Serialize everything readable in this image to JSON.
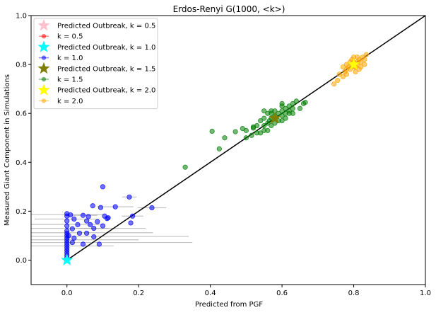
{
  "chart_data": {
    "type": "scatter",
    "title": "Erdos-Renyi G(1000, <k>)",
    "xlabel": "Predicted from PGF",
    "ylabel": "Measured Giant Component in Simulations",
    "xlim": [
      -0.1,
      1.0
    ],
    "ylim": [
      -0.1,
      1.0
    ],
    "xticks": [
      "0.0",
      "0.2",
      "0.4",
      "0.6",
      "0.8",
      "1.0"
    ],
    "yticks": [
      "0.0",
      "0.2",
      "0.4",
      "0.6",
      "0.8",
      "1.0"
    ],
    "grid": false,
    "legend_position": "upper-left",
    "reference_line": {
      "x": [
        0,
        1.0
      ],
      "y": [
        0,
        1.0
      ],
      "color": "#000000"
    },
    "series": [
      {
        "name": "Predicted Outbreak, k = 0.5",
        "kind": "star",
        "color": "#ffc0cb",
        "points": [
          [
            0.0,
            0.0
          ]
        ]
      },
      {
        "name": "k = 0.5",
        "kind": "scatter",
        "color": "#ff0000",
        "points": []
      },
      {
        "name": "Predicted Outbreak, k = 1.0",
        "kind": "star",
        "color": "#00ffff",
        "points": [
          [
            0.0,
            0.0
          ]
        ]
      },
      {
        "name": "k = 1.0",
        "kind": "scatter",
        "color": "#0000ff",
        "points": [
          [
            0.0,
            0.19
          ],
          [
            0.0,
            0.18
          ],
          [
            0.0,
            0.16
          ],
          [
            0.0,
            0.14
          ],
          [
            0.0,
            0.12
          ],
          [
            0.0,
            0.11
          ],
          [
            0.0,
            0.1
          ],
          [
            0.0,
            0.09
          ],
          [
            0.0,
            0.08
          ],
          [
            0.0,
            0.07
          ],
          [
            0.0,
            0.06
          ],
          [
            0.0,
            0.05
          ],
          [
            0.0,
            0.04
          ],
          [
            0.0,
            0.03
          ],
          [
            0.0,
            0.02
          ],
          [
            0.0,
            0.01
          ],
          [
            0.1,
            0.3
          ],
          [
            0.174,
            0.258
          ],
          [
            0.072,
            0.222
          ],
          [
            0.094,
            0.215
          ],
          [
            0.135,
            0.218
          ],
          [
            0.237,
            0.214
          ],
          [
            0.01,
            0.185
          ],
          [
            0.045,
            0.183
          ],
          [
            0.06,
            0.178
          ],
          [
            0.105,
            0.18
          ],
          [
            0.183,
            0.18
          ],
          [
            0.02,
            0.168
          ],
          [
            0.055,
            0.16
          ],
          [
            0.085,
            0.157
          ],
          [
            0.112,
            0.17
          ],
          [
            0.03,
            0.145
          ],
          [
            0.065,
            0.145
          ],
          [
            0.115,
            0.173
          ],
          [
            0.178,
            0.152
          ],
          [
            0.015,
            0.128
          ],
          [
            0.075,
            0.13
          ],
          [
            0.1,
            0.14
          ],
          [
            0.035,
            0.11
          ],
          [
            0.055,
            0.11
          ],
          [
            0.005,
            0.1
          ],
          [
            0.02,
            0.09
          ],
          [
            0.075,
            0.095
          ],
          [
            0.015,
            0.072
          ],
          [
            0.045,
            0.065
          ],
          [
            0.09,
            0.065
          ]
        ]
      },
      {
        "name": "Predicted Outbreak, k = 1.5",
        "kind": "star",
        "color": "#808000",
        "points": [
          [
            0.58,
            0.58
          ]
        ]
      },
      {
        "name": "k = 1.5",
        "kind": "scatter",
        "color": "#008000",
        "points": [
          [
            0.33,
            0.38
          ],
          [
            0.405,
            0.527
          ],
          [
            0.425,
            0.455
          ],
          [
            0.44,
            0.5
          ],
          [
            0.47,
            0.525
          ],
          [
            0.49,
            0.538
          ],
          [
            0.5,
            0.53
          ],
          [
            0.515,
            0.51
          ],
          [
            0.52,
            0.545
          ],
          [
            0.5,
            0.5
          ],
          [
            0.53,
            0.55
          ],
          [
            0.54,
            0.52
          ],
          [
            0.55,
            0.55
          ],
          [
            0.56,
            0.56
          ],
          [
            0.565,
            0.57
          ],
          [
            0.57,
            0.58
          ],
          [
            0.58,
            0.59
          ],
          [
            0.59,
            0.6
          ],
          [
            0.6,
            0.61
          ],
          [
            0.61,
            0.62
          ],
          [
            0.62,
            0.63
          ],
          [
            0.63,
            0.62
          ],
          [
            0.64,
            0.65
          ],
          [
            0.665,
            0.645
          ],
          [
            0.56,
            0.6
          ],
          [
            0.55,
            0.61
          ],
          [
            0.57,
            0.61
          ],
          [
            0.6,
            0.57
          ],
          [
            0.61,
            0.58
          ],
          [
            0.62,
            0.6
          ],
          [
            0.58,
            0.56
          ],
          [
            0.55,
            0.58
          ],
          [
            0.6,
            0.63
          ],
          [
            0.63,
            0.64
          ],
          [
            0.61,
            0.6
          ],
          [
            0.59,
            0.57
          ],
          [
            0.56,
            0.53
          ],
          [
            0.57,
            0.55
          ],
          [
            0.6,
            0.59
          ],
          [
            0.62,
            0.61
          ],
          [
            0.53,
            0.52
          ],
          [
            0.55,
            0.53
          ],
          [
            0.65,
            0.62
          ],
          [
            0.66,
            0.64
          ],
          [
            0.63,
            0.6
          ],
          [
            0.6,
            0.64
          ],
          [
            0.58,
            0.61
          ],
          [
            0.54,
            0.57
          ],
          [
            0.52,
            0.54
          ],
          [
            0.57,
            0.6
          ]
        ]
      },
      {
        "name": "Predicted Outbreak, k = 2.0",
        "kind": "star",
        "color": "#ffff00",
        "points": [
          [
            0.8,
            0.8
          ]
        ]
      },
      {
        "name": "k = 2.0",
        "kind": "scatter",
        "color": "#ffa500",
        "points": [
          [
            0.745,
            0.72
          ],
          [
            0.755,
            0.735
          ],
          [
            0.77,
            0.75
          ],
          [
            0.775,
            0.77
          ],
          [
            0.78,
            0.76
          ],
          [
            0.785,
            0.79
          ],
          [
            0.79,
            0.78
          ],
          [
            0.795,
            0.8
          ],
          [
            0.8,
            0.81
          ],
          [
            0.805,
            0.79
          ],
          [
            0.81,
            0.8
          ],
          [
            0.815,
            0.82
          ],
          [
            0.82,
            0.81
          ],
          [
            0.825,
            0.83
          ],
          [
            0.83,
            0.82
          ],
          [
            0.835,
            0.84
          ],
          [
            0.79,
            0.81
          ],
          [
            0.8,
            0.79
          ],
          [
            0.81,
            0.83
          ],
          [
            0.78,
            0.8
          ],
          [
            0.77,
            0.79
          ],
          [
            0.82,
            0.79
          ],
          [
            0.805,
            0.77
          ],
          [
            0.795,
            0.82
          ],
          [
            0.815,
            0.78
          ],
          [
            0.76,
            0.76
          ],
          [
            0.83,
            0.8
          ],
          [
            0.8,
            0.83
          ],
          [
            0.78,
            0.78
          ],
          [
            0.81,
            0.81
          ]
        ]
      }
    ],
    "error_bars": [
      {
        "x": 0.0,
        "y": 0.186,
        "xerr": 0.1
      },
      {
        "x": 0.0,
        "y": 0.168,
        "xerr": 0.09
      },
      {
        "x": 0.0,
        "y": 0.146,
        "xerr": 0.1
      },
      {
        "x": 0.0,
        "y": 0.13,
        "xerr": 0.22
      },
      {
        "x": 0.0,
        "y": 0.112,
        "xerr": 0.24
      },
      {
        "x": 0.0,
        "y": 0.097,
        "xerr": 0.34
      },
      {
        "x": 0.0,
        "y": 0.083,
        "xerr": 0.2
      },
      {
        "x": 0.0,
        "y": 0.072,
        "xerr": 0.35
      },
      {
        "x": 0.0,
        "y": 0.058,
        "xerr": 0.13
      },
      {
        "x": 0.174,
        "y": 0.258,
        "xerr": 0.02
      },
      {
        "x": 0.135,
        "y": 0.218,
        "xerr": 0.05
      },
      {
        "x": 0.237,
        "y": 0.214,
        "xerr": 0.04
      },
      {
        "x": 0.183,
        "y": 0.18,
        "xerr": 0.03
      },
      {
        "x": 0.045,
        "y": 0.183,
        "xerr": 0.04
      },
      {
        "x": 0.075,
        "y": 0.13,
        "xerr": 0.04
      }
    ]
  }
}
